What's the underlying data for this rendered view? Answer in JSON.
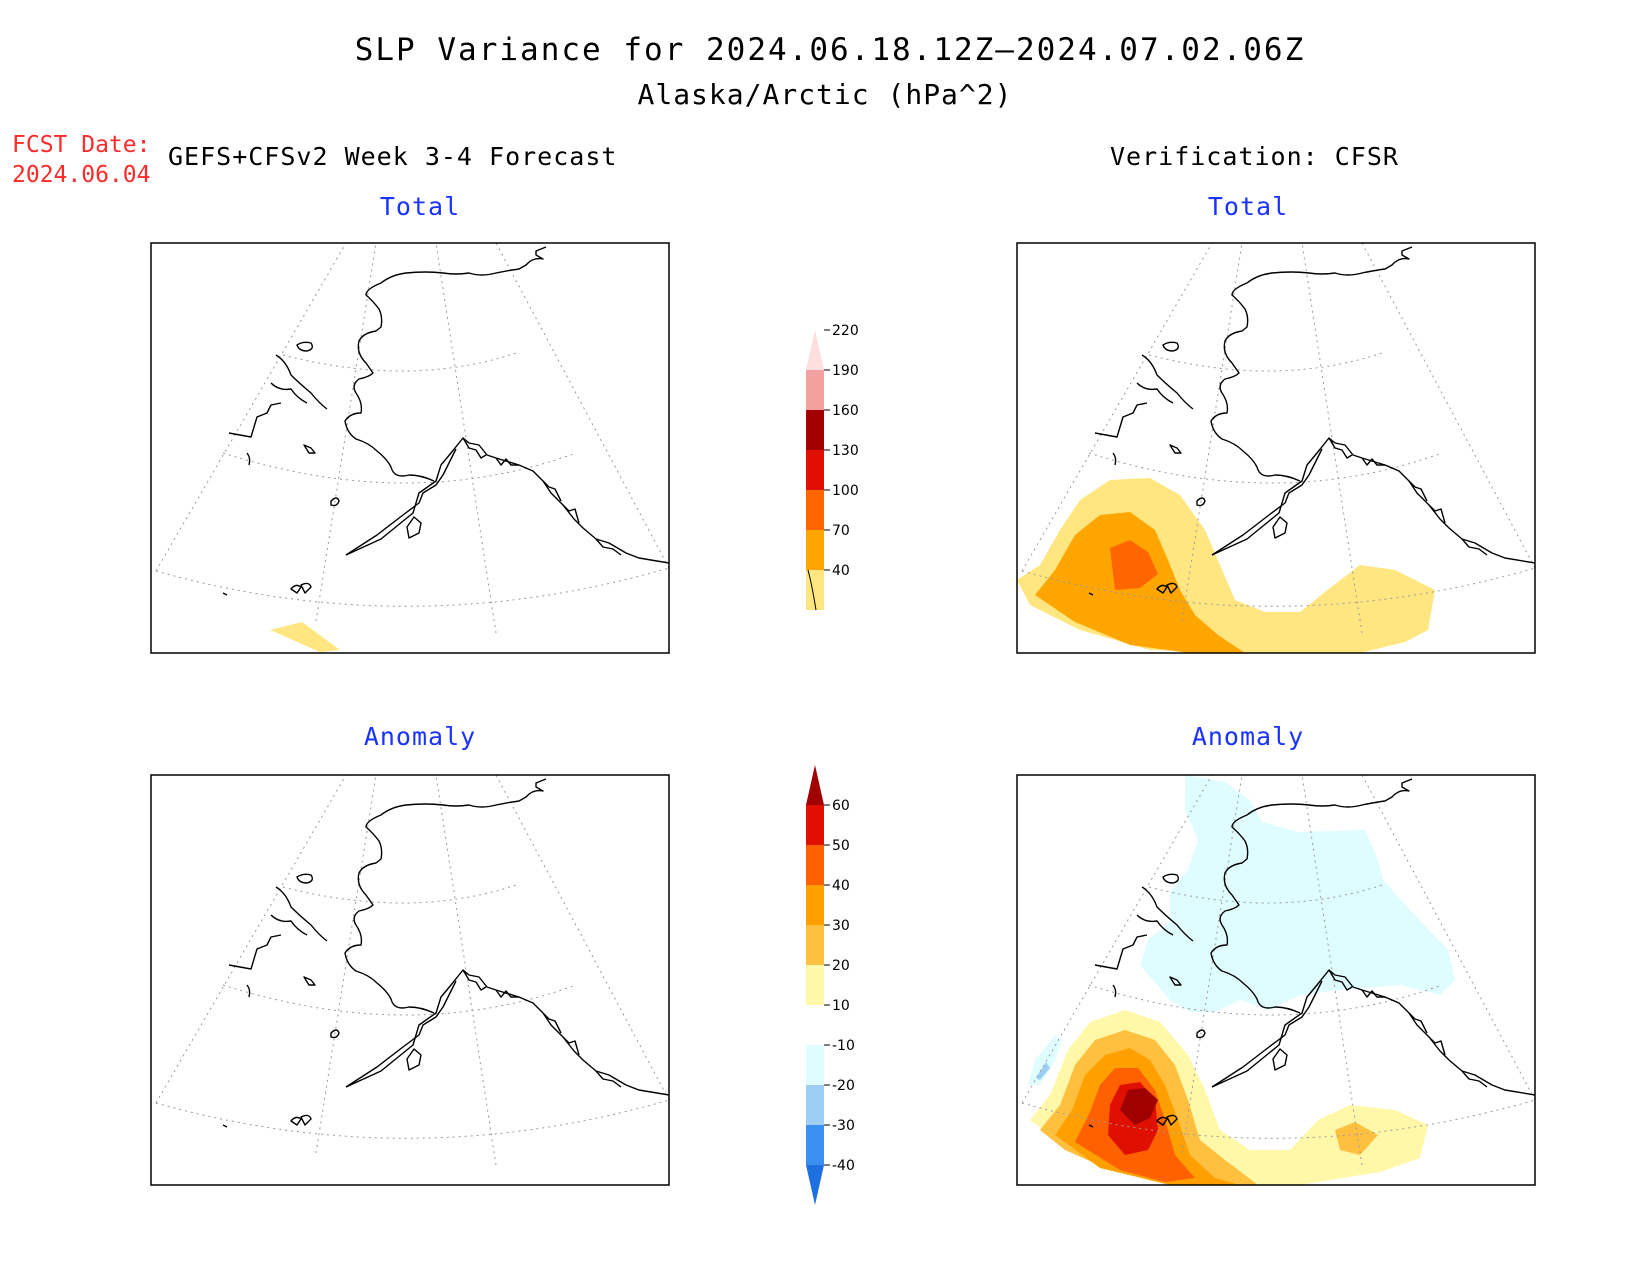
{
  "title": "SLP Variance for 2024.06.18.12Z—2024.07.02.06Z",
  "subtitle": "Alaska/Arctic (hPa^2)",
  "fcst_label": "FCST Date:",
  "fcst_date": "2024.06.04",
  "left_heading": "GEFS+CFSv2 Week 3-4 Forecast",
  "right_heading": "Verification: CFSR",
  "panels": {
    "top_left": "Total",
    "top_right": "Total",
    "bottom_left": "Anomaly",
    "bottom_right": "Anomaly"
  },
  "colorbars": {
    "total": {
      "labels": [
        "40",
        "70",
        "100",
        "130",
        "160",
        "190",
        "220"
      ],
      "colors": [
        "#ffe680",
        "#ffa500",
        "#ff6600",
        "#e01000",
        "#a50000",
        "#f2a0a0",
        "#fde0dd"
      ]
    },
    "anomaly": {
      "labels": [
        "-40",
        "-30",
        "-20",
        "-10",
        "10",
        "20",
        "30",
        "40",
        "50",
        "60"
      ],
      "colors": [
        "#1e6fe0",
        "#3b8ff0",
        "#9dcff5",
        "#dffcff",
        "#ffffff",
        "#fff8a8",
        "#ffc040",
        "#ffa000",
        "#ff6000",
        "#e01000",
        "#a00000"
      ]
    }
  }
}
